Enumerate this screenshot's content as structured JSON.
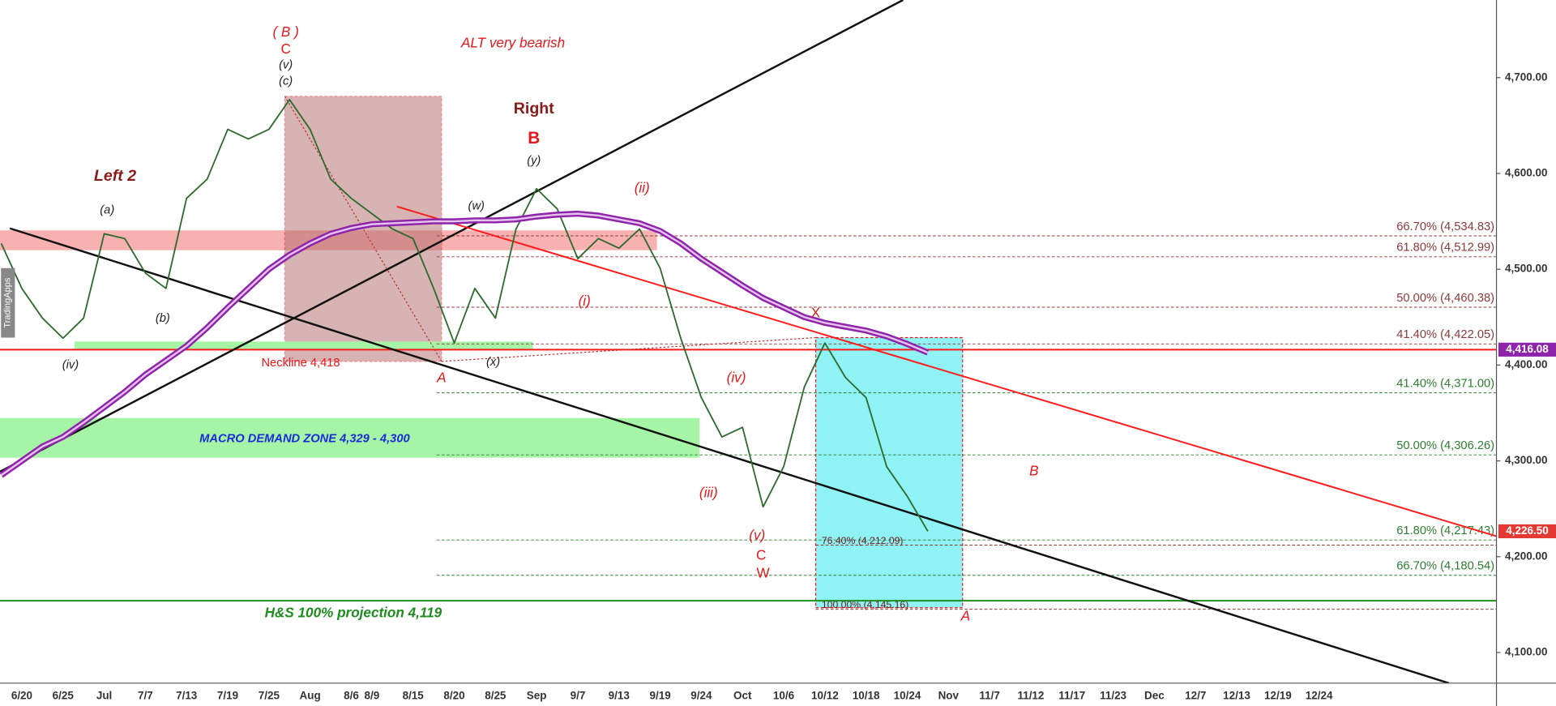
{
  "chart_data": {
    "type": "line",
    "categories": [
      null,
      "6/20",
      null,
      "6/25",
      null,
      "Jul",
      null,
      "7/7",
      null,
      "7/13",
      null,
      "7/19",
      null,
      "7/25",
      null,
      "Aug",
      null,
      "8/6",
      "8/9",
      null,
      "8/15",
      null,
      "8/20",
      null,
      "8/25",
      null,
      "Sep",
      null,
      "9/7",
      null,
      "9/13",
      null,
      "9/19",
      null,
      "9/24",
      null,
      "Oct",
      null,
      "10/6",
      null,
      "10/12",
      null,
      "10/18",
      null,
      "10/24",
      null,
      "Nov",
      null,
      "11/7",
      null,
      "11/12",
      null,
      "11/17",
      null,
      "11/23",
      null,
      "Dec",
      null,
      "12/7",
      null,
      "12/13",
      null,
      "12/19",
      null,
      "12/24",
      null
    ],
    "series": [
      {
        "color": "#2f6b2f",
        "width": 1.5,
        "values": [
          4527,
          4480,
          4449,
          4428,
          4449,
          4537,
          4532,
          4496,
          4480,
          4574,
          4594,
          4646,
          4636,
          4646,
          4677,
          4646,
          4594,
          4574,
          4558,
          4542,
          4532,
          4480,
          4423,
          4480,
          4449,
          4542,
          4584,
          4563,
          4511,
          4532,
          4522,
          4542,
          4501,
          4428,
          4366,
          4325,
          4335,
          4252,
          4294,
          4377,
          4423,
          4387,
          4366,
          4294,
          4263,
          4226.5,
          null,
          null,
          null,
          null,
          null,
          null,
          null,
          null,
          null,
          null,
          null,
          null,
          null,
          null,
          null,
          null,
          null,
          null,
          null,
          null
        ]
      },
      {
        "color": "#8e24aa",
        "width": 6,
        "values": [
          4285,
          4300,
          4315,
          4325,
          4340,
          4356,
          4372,
          4390,
          4405,
          4420,
          4439,
          4460,
          4480,
          4500,
          4515,
          4527,
          4537,
          4543,
          4547,
          4548,
          4549,
          4550,
          4550,
          4551,
          4551,
          4552,
          4555,
          4557,
          4558,
          4556,
          4552,
          4548,
          4540,
          4527,
          4511,
          4497,
          4483,
          4470,
          4460,
          4450,
          4444,
          4440,
          4436,
          4430,
          4422,
          4413,
          null,
          null,
          null,
          null,
          null,
          null,
          null,
          null,
          null,
          null,
          null,
          null,
          null,
          null,
          null,
          null,
          null,
          null,
          null,
          null
        ]
      }
    ],
    "ylim": [
      4068,
      4781
    ],
    "yticks": [
      {
        "value": 4100,
        "label": "4,100.00"
      },
      {
        "value": 4200,
        "label": "4,200.00"
      },
      {
        "value": 4300,
        "label": "4,300.00"
      },
      {
        "value": 4400,
        "label": "4,400.00"
      },
      {
        "value": 4500,
        "label": "4,500.00"
      },
      {
        "value": 4600,
        "label": "4,600.00"
      },
      {
        "value": 4700,
        "label": "4,700.00"
      }
    ],
    "levels": [
      {
        "value": 4534.83,
        "label": "66.70% (4,534.83)",
        "color": "#8b3a3a"
      },
      {
        "value": 4512.99,
        "label": "61.80% (4,512.99)",
        "color": "#8b3a3a"
      },
      {
        "value": 4460.38,
        "label": "50.00% (4,460.38)",
        "color": "#8b3a3a"
      },
      {
        "value": 4422.05,
        "label": "41.40% (4,422.05)",
        "color": "#8b3a3a"
      },
      {
        "value": 4371.0,
        "label": "41.40% (4,371.00)",
        "color": "#2e7d32"
      },
      {
        "value": 4306.26,
        "label": "50.00% (4,306.26)",
        "color": "#2e7d32"
      },
      {
        "value": 4217.43,
        "label": "61.80% (4,217.43)",
        "color": "#2e7d32"
      },
      {
        "value": 4180.54,
        "label": "66.70% (4,180.54)",
        "color": "#2e7d32"
      }
    ],
    "box_levels": [
      {
        "value": 4212.09,
        "label": "76.40% (4,212.09)"
      },
      {
        "value": 4145.16,
        "label": "100.00% (4,145.16)"
      }
    ],
    "horizontal_lines": [
      {
        "value": 4416.08,
        "color": "#ff1a1a"
      },
      {
        "value": 4154,
        "color": "#1e8c1e"
      }
    ],
    "price_labels": [
      {
        "value": 4416.08,
        "label": "4,416.08",
        "color": "#8e24aa"
      },
      {
        "value": 4226.5,
        "label": "4,226.50",
        "color": "#e53935"
      }
    ],
    "annotations": [
      "( B )",
      "C",
      "(v)",
      "(c)",
      "ALT very bearish",
      "Right",
      "B",
      "(y)",
      "Left 2",
      "(a)",
      "(b)",
      "(iv)",
      "(w)",
      "(ii)",
      "(i)",
      "(x)",
      "Neckline 4,418",
      "A",
      "X",
      "(iv)",
      "(iii)",
      "(v)",
      "C",
      "W",
      "B",
      "A",
      "MACRO DEMAND ZONE 4,329 - 4,300",
      "H&S 100% projection 4,119"
    ],
    "watermark": "TradingApps"
  }
}
